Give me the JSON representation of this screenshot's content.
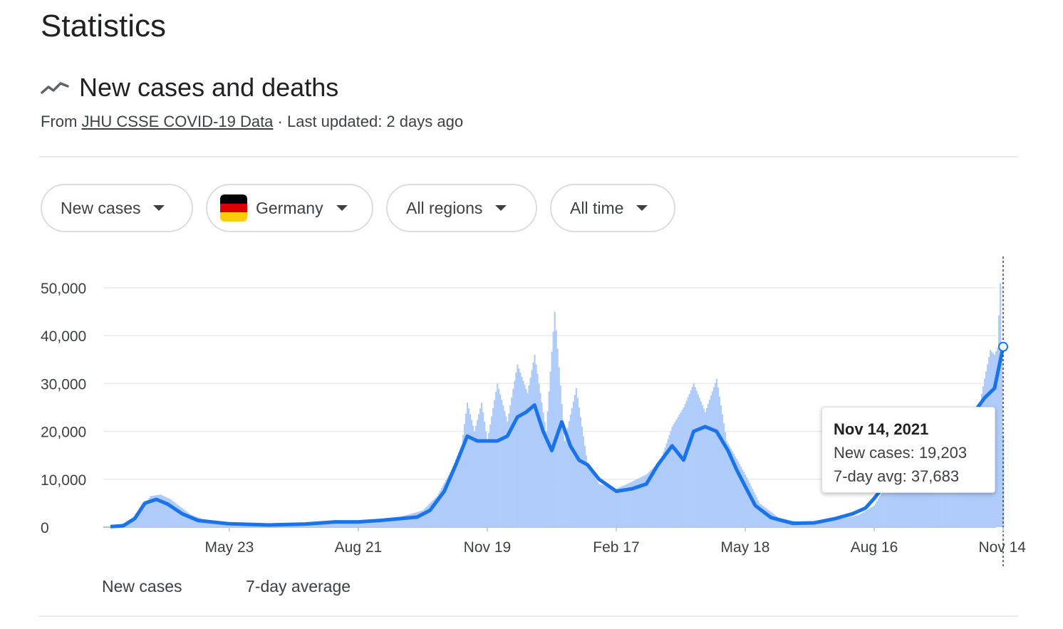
{
  "page": {
    "title": "Statistics"
  },
  "section": {
    "title": "New cases and deaths",
    "icon": "trending-line-icon",
    "source_prefix": "From",
    "source_link": "JHU CSSE COVID-19 Data",
    "source_suffix": " · Last updated: 2 days ago"
  },
  "filters": {
    "metric": "New cases",
    "location": "Germany",
    "region": "All regions",
    "range": "All time"
  },
  "flag_colors": [
    "#000000",
    "#dd0000",
    "#ffce00"
  ],
  "colors": {
    "bars": "#aecbfa",
    "line": "#1a73e8",
    "grid": "#e8eaed"
  },
  "tooltip": {
    "date": "Nov 14, 2021",
    "new_cases": "New cases: 19,203",
    "avg": "7-day avg: 37,683"
  },
  "legend": {
    "bars_label": "New cases",
    "line_label": "7-day average"
  },
  "chart_data": {
    "type": "bar",
    "title": "",
    "xlabel": "",
    "ylabel": "",
    "ylim": [
      0,
      55000
    ],
    "y_ticks": [
      0,
      10000,
      20000,
      30000,
      40000,
      50000
    ],
    "y_tick_labels": [
      "0",
      "10,000",
      "20,000",
      "30,000",
      "40,000",
      "50,000"
    ],
    "x_tick_labels": [
      "May 23",
      "Aug 21",
      "Nov 19",
      "Feb 17",
      "May 18",
      "Aug 16",
      "Nov 14"
    ],
    "x_tick_dates": [
      "2020-05-23",
      "2020-08-21",
      "2020-11-19",
      "2021-02-17",
      "2021-05-18",
      "2021-08-16",
      "2021-11-14"
    ],
    "series": [
      {
        "name": "New cases",
        "type": "bar",
        "dates": [
          "2020-03-01",
          "2020-03-15",
          "2020-03-22",
          "2020-03-29",
          "2020-04-05",
          "2020-04-12",
          "2020-04-26",
          "2020-05-10",
          "2020-05-23",
          "2020-06-15",
          "2020-07-05",
          "2020-07-25",
          "2020-08-10",
          "2020-08-21",
          "2020-09-05",
          "2020-09-20",
          "2020-10-05",
          "2020-10-15",
          "2020-10-25",
          "2020-11-01",
          "2020-11-05",
          "2020-11-10",
          "2020-11-15",
          "2020-11-19",
          "2020-11-26",
          "2020-12-03",
          "2020-12-10",
          "2020-12-17",
          "2020-12-22",
          "2020-12-30",
          "2021-01-05",
          "2021-01-12",
          "2021-01-20",
          "2021-01-28",
          "2021-02-05",
          "2021-02-17",
          "2021-02-28",
          "2021-03-10",
          "2021-03-20",
          "2021-03-28",
          "2021-04-05",
          "2021-04-12",
          "2021-04-20",
          "2021-04-28",
          "2021-05-05",
          "2021-05-18",
          "2021-05-28",
          "2021-06-10",
          "2021-06-25",
          "2021-07-10",
          "2021-07-25",
          "2021-08-05",
          "2021-08-16",
          "2021-08-25",
          "2021-09-05",
          "2021-09-20",
          "2021-10-05",
          "2021-10-15",
          "2021-10-25",
          "2021-11-01",
          "2021-11-05",
          "2021-11-08",
          "2021-11-10",
          "2021-11-12",
          "2021-11-14"
        ],
        "values": [
          100,
          1200,
          3500,
          6500,
          6800,
          5800,
          2600,
          1100,
          600,
          400,
          600,
          900,
          1300,
          1400,
          1700,
          2200,
          3500,
          6500,
          12000,
          17000,
          26000,
          20000,
          26000,
          18000,
          30000,
          22000,
          34000,
          28000,
          36000,
          20000,
          45000,
          18000,
          29000,
          13000,
          9000,
          8000,
          9500,
          11000,
          14000,
          21000,
          25000,
          30000,
          24000,
          31000,
          18000,
          11000,
          5000,
          2000,
          1000,
          1200,
          1800,
          2500,
          4500,
          9000,
          13000,
          17000,
          16000,
          14000,
          20000,
          31000,
          37000,
          36000,
          37500,
          51000,
          19203
        ]
      },
      {
        "name": "7-day average",
        "type": "line",
        "dates": [
          "2020-03-01",
          "2020-03-10",
          "2020-03-18",
          "2020-03-25",
          "2020-04-02",
          "2020-04-10",
          "2020-04-20",
          "2020-05-01",
          "2020-05-23",
          "2020-06-20",
          "2020-07-15",
          "2020-08-05",
          "2020-08-21",
          "2020-09-05",
          "2020-09-20",
          "2020-10-01",
          "2020-10-10",
          "2020-10-20",
          "2020-10-28",
          "2020-11-05",
          "2020-11-12",
          "2020-11-19",
          "2020-11-26",
          "2020-12-03",
          "2020-12-10",
          "2020-12-16",
          "2020-12-22",
          "2020-12-28",
          "2021-01-03",
          "2021-01-10",
          "2021-01-16",
          "2021-01-22",
          "2021-01-28",
          "2021-02-05",
          "2021-02-17",
          "2021-02-28",
          "2021-03-10",
          "2021-03-18",
          "2021-03-28",
          "2021-04-05",
          "2021-04-12",
          "2021-04-20",
          "2021-04-28",
          "2021-05-06",
          "2021-05-12",
          "2021-05-18",
          "2021-05-25",
          "2021-06-05",
          "2021-06-20",
          "2021-07-05",
          "2021-07-20",
          "2021-08-01",
          "2021-08-10",
          "2021-08-16",
          "2021-08-25",
          "2021-09-05",
          "2021-09-20",
          "2021-10-05",
          "2021-10-20",
          "2021-11-01",
          "2021-11-08",
          "2021-11-14"
        ],
        "values": [
          100,
          300,
          1800,
          5000,
          5800,
          4800,
          2800,
          1400,
          700,
          450,
          650,
          1100,
          1100,
          1400,
          1800,
          2100,
          3500,
          7500,
          13000,
          19000,
          18000,
          18000,
          18000,
          19000,
          23000,
          24000,
          25500,
          20000,
          16000,
          22000,
          17000,
          14000,
          13000,
          10000,
          7500,
          8000,
          9000,
          13000,
          17000,
          14000,
          20000,
          21000,
          20000,
          16000,
          12000,
          8500,
          4500,
          2000,
          800,
          900,
          1800,
          2800,
          4000,
          6000,
          9500,
          14000,
          16000,
          18000,
          22000,
          27000,
          29000,
          37683
        ]
      }
    ]
  }
}
